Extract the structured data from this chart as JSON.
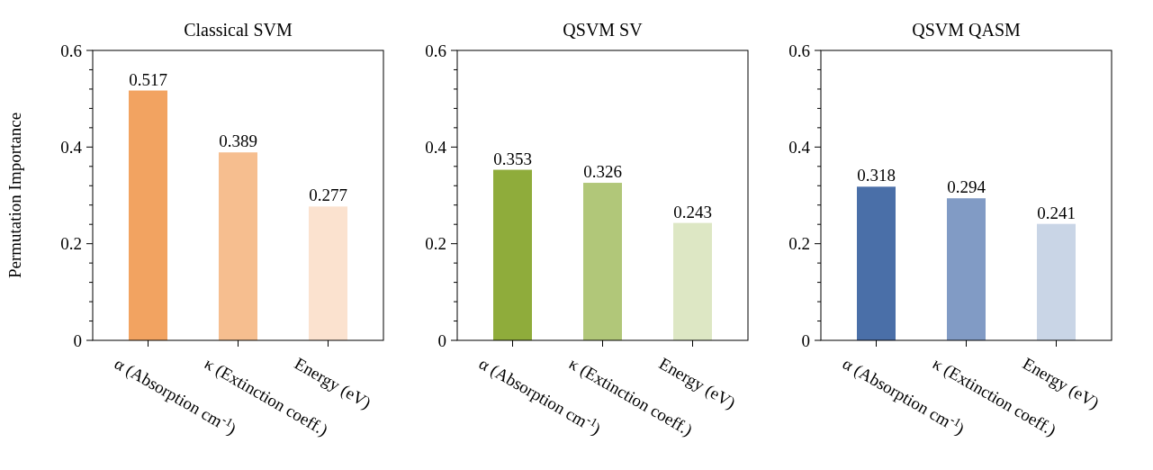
{
  "chart_data": [
    {
      "type": "bar",
      "title": "Classical SVM",
      "ylabel": "Permutation Importance",
      "categories": [
        "α (Absorption cm$^{-1}$)",
        "κ (Extinction coeff.)",
        "Energy (eV)"
      ],
      "values": [
        0.517,
        0.389,
        0.277
      ],
      "colors": [
        "#f2a361",
        "#f6be8f",
        "#fbe2cf"
      ],
      "ylim": [
        0,
        0.6
      ],
      "yticks": [
        {
          "value": 0,
          "label": "0"
        },
        {
          "value": 0.04,
          "label": null
        },
        {
          "value": 0.08,
          "label": null
        },
        {
          "value": 0.12,
          "label": null
        },
        {
          "value": 0.16,
          "label": null
        },
        {
          "value": 0.2,
          "label": "0.2"
        },
        {
          "value": 0.24,
          "label": null
        },
        {
          "value": 0.28,
          "label": null
        },
        {
          "value": 0.32,
          "label": null
        },
        {
          "value": 0.36,
          "label": null
        },
        {
          "value": 0.4,
          "label": "0.4"
        },
        {
          "value": 0.44,
          "label": null
        },
        {
          "value": 0.48,
          "label": null
        },
        {
          "value": 0.52,
          "label": null
        },
        {
          "value": 0.56,
          "label": null
        },
        {
          "value": 0.6,
          "label": "0.6"
        }
      ],
      "data_labels": true
    },
    {
      "type": "bar",
      "title": "QSVM SV",
      "categories": [
        "α (Absorption cm$^{-1}$)",
        "κ (Extinction coeff.)",
        "Energy (eV)"
      ],
      "values": [
        0.353,
        0.326,
        0.243
      ],
      "colors": [
        "#8fac3b",
        "#b1c779",
        "#dde7c4"
      ],
      "ylim": [
        0,
        0.6
      ],
      "yticks": [
        {
          "value": 0,
          "label": "0"
        },
        {
          "value": 0.04,
          "label": null
        },
        {
          "value": 0.08,
          "label": null
        },
        {
          "value": 0.12,
          "label": null
        },
        {
          "value": 0.16,
          "label": null
        },
        {
          "value": 0.2,
          "label": "0.2"
        },
        {
          "value": 0.24,
          "label": null
        },
        {
          "value": 0.28,
          "label": null
        },
        {
          "value": 0.32,
          "label": null
        },
        {
          "value": 0.36,
          "label": null
        },
        {
          "value": 0.4,
          "label": "0.4"
        },
        {
          "value": 0.44,
          "label": null
        },
        {
          "value": 0.48,
          "label": null
        },
        {
          "value": 0.52,
          "label": null
        },
        {
          "value": 0.56,
          "label": null
        },
        {
          "value": 0.6,
          "label": "0.6"
        }
      ],
      "data_labels": true
    },
    {
      "type": "bar",
      "title": "QSVM QASM",
      "categories": [
        "α (Absorption cm$^{-1}$)",
        "κ (Extinction coeff.)",
        "Energy (eV)"
      ],
      "values": [
        0.318,
        0.294,
        0.241
      ],
      "colors": [
        "#4a6fa8",
        "#819bc5",
        "#c9d5e6"
      ],
      "ylim": [
        0,
        0.6
      ],
      "yticks": [
        {
          "value": 0,
          "label": "0"
        },
        {
          "value": 0.04,
          "label": null
        },
        {
          "value": 0.08,
          "label": null
        },
        {
          "value": 0.12,
          "label": null
        },
        {
          "value": 0.16,
          "label": null
        },
        {
          "value": 0.2,
          "label": "0.2"
        },
        {
          "value": 0.24,
          "label": null
        },
        {
          "value": 0.28,
          "label": null
        },
        {
          "value": 0.32,
          "label": null
        },
        {
          "value": 0.36,
          "label": null
        },
        {
          "value": 0.4,
          "label": "0.4"
        },
        {
          "value": 0.44,
          "label": null
        },
        {
          "value": 0.48,
          "label": null
        },
        {
          "value": 0.52,
          "label": null
        },
        {
          "value": 0.56,
          "label": null
        },
        {
          "value": 0.6,
          "label": "0.6"
        }
      ],
      "data_labels": true
    }
  ]
}
